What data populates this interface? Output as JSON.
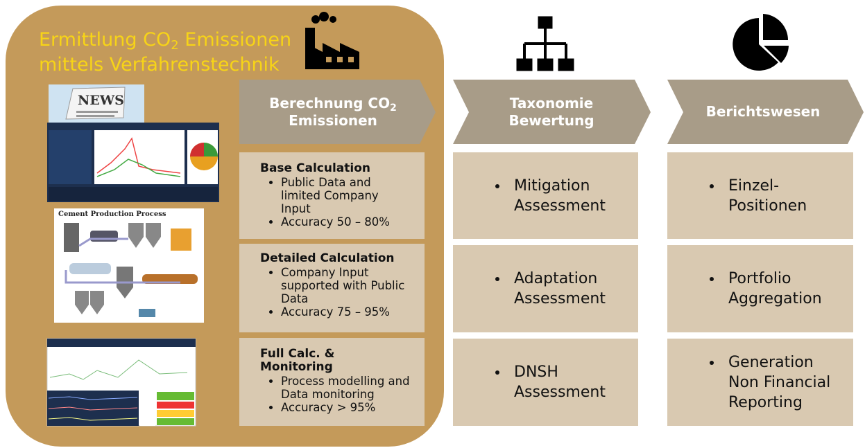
{
  "title": {
    "line1_before": "Ermittlung CO",
    "line1_sub": "2",
    "line1_after": "Emissionen",
    "line2": "mittels Verfahrenstechnik"
  },
  "images": {
    "news": "NEWS",
    "cement": "Cement Production Process"
  },
  "columns": [
    {
      "header": {
        "before": "Berechnung CO",
        "sub": "2",
        "after": "Emissionen"
      },
      "boxes": [
        {
          "title": "Base Calculation",
          "bullets": [
            "Public Data and limited Company Input",
            "Accuracy 50 – 80%"
          ]
        },
        {
          "title": "Detailed Calculation",
          "bullets": [
            "Company Input supported with Public Data",
            "Accuracy  75 – 95%"
          ]
        },
        {
          "title": "Full Calc. & Monitoring",
          "bullets": [
            "Process modelling and Data monitoring",
            "Accuracy > 95%"
          ]
        }
      ]
    },
    {
      "header": "Taxonomie Bewertung",
      "boxes": [
        {
          "bullets": [
            "Mitigation Assessment"
          ]
        },
        {
          "bullets": [
            "Adaptation Assessment"
          ]
        },
        {
          "bullets": [
            "DNSH Assessment"
          ]
        }
      ]
    },
    {
      "header": "Berichtswesen",
      "boxes": [
        {
          "bullets": [
            "Einzel-Positionen"
          ]
        },
        {
          "bullets": [
            "Portfolio Aggregation"
          ]
        },
        {
          "bullets": [
            "Generation Non Financial Reporting"
          ]
        }
      ]
    }
  ]
}
